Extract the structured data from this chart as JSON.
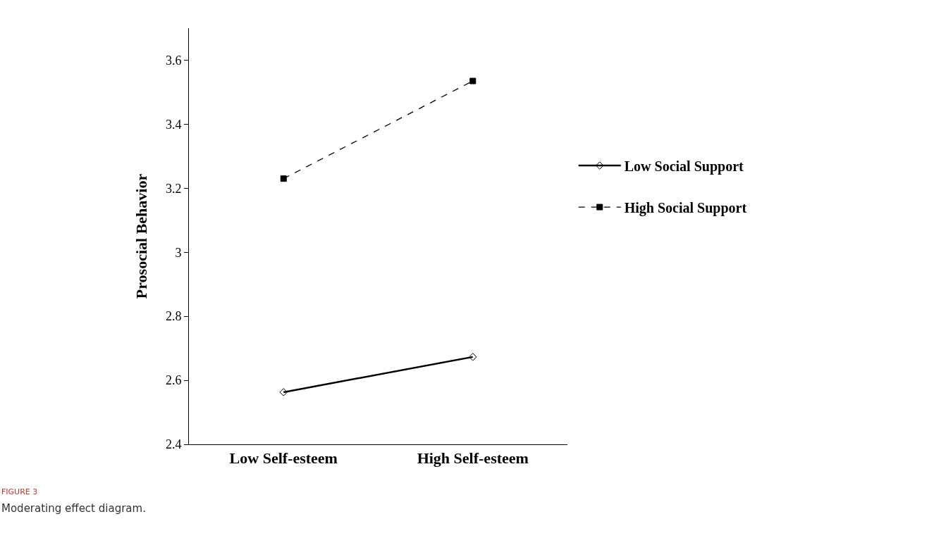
{
  "chart_data": {
    "type": "line",
    "ylabel": "Prosocial Behavior",
    "categories": [
      "Low Self-esteem",
      "High Self-esteem"
    ],
    "series": [
      {
        "name": "Low Social Support",
        "color": "#000000",
        "values": [
          2.563,
          2.673
        ],
        "marker": "diamond",
        "line_style": "solid"
      },
      {
        "name": "High Social Support",
        "color": "#000000",
        "values": [
          3.23,
          3.535
        ],
        "marker": "square",
        "line_style": "dashed"
      }
    ],
    "ylim": [
      2.4,
      3.7
    ],
    "yticks": [
      2.4,
      2.6,
      2.8,
      3,
      3.2,
      3.4,
      3.6
    ],
    "legend": "right",
    "annotations": [
      "FIGURE 3",
      "Moderating effect diagram."
    ]
  }
}
